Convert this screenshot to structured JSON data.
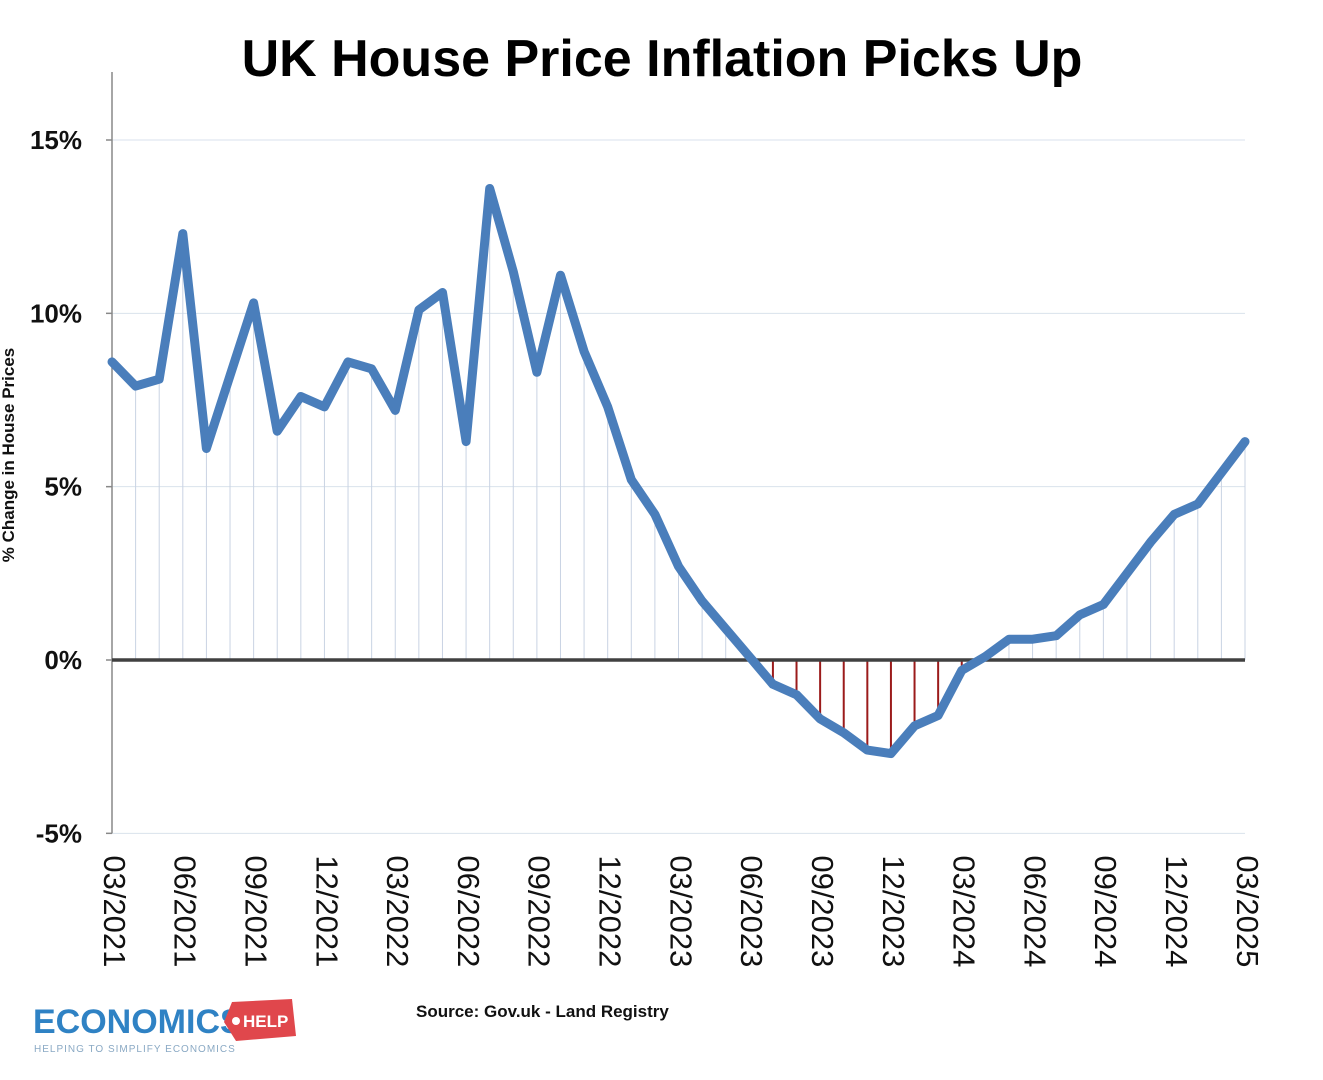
{
  "chart_data": {
    "type": "line",
    "title": "UK House Price Inflation Picks Up",
    "ylabel": "% Change in House Prices",
    "ylim": [
      -5,
      17
    ],
    "yticks": [
      -5,
      0,
      5,
      10,
      15
    ],
    "ytick_labels": [
      "-5%",
      "0%",
      "5%",
      "10%",
      "15%"
    ],
    "x_tick_labels": [
      "03/2021",
      "06/2021",
      "09/2021",
      "12/2021",
      "03/2022",
      "06/2022",
      "09/2022",
      "12/2022",
      "03/2023",
      "06/2023",
      "09/2023",
      "12/2023",
      "03/2024",
      "06/2024",
      "09/2024",
      "12/2024",
      "03/2025"
    ],
    "x": [
      "03/2021",
      "04/2021",
      "05/2021",
      "06/2021",
      "07/2021",
      "08/2021",
      "09/2021",
      "10/2021",
      "11/2021",
      "12/2021",
      "01/2022",
      "02/2022",
      "03/2022",
      "04/2022",
      "05/2022",
      "06/2022",
      "07/2022",
      "08/2022",
      "09/2022",
      "10/2022",
      "11/2022",
      "12/2022",
      "01/2023",
      "02/2023",
      "03/2023",
      "04/2023",
      "05/2023",
      "06/2023",
      "07/2023",
      "08/2023",
      "09/2023",
      "10/2023",
      "11/2023",
      "12/2023",
      "01/2024",
      "02/2024",
      "03/2024",
      "04/2024",
      "05/2024",
      "06/2024",
      "07/2024",
      "08/2024",
      "09/2024",
      "10/2024",
      "11/2024",
      "12/2024",
      "01/2025",
      "02/2025",
      "03/2025"
    ],
    "series": [
      {
        "values": [
          8.6,
          7.9,
          8.1,
          12.3,
          6.1,
          8.2,
          10.3,
          6.6,
          7.6,
          7.3,
          8.6,
          8.4,
          7.2,
          10.1,
          10.6,
          6.3,
          13.6,
          11.2,
          8.3,
          11.1,
          8.9,
          7.3,
          5.2,
          4.2,
          2.7,
          1.7,
          0.9,
          0.1,
          -0.7,
          -1.0,
          -1.7,
          -2.1,
          -2.6,
          -2.7,
          -1.9,
          -1.6,
          -0.3,
          0.1,
          0.6,
          0.6,
          0.7,
          1.3,
          1.6,
          2.5,
          3.4,
          4.2,
          4.5,
          5.4,
          6.3
        ],
        "color": "#4a7ebb"
      }
    ],
    "zero_line_color": "#404040",
    "negative_drop_color": "#9b1b1b",
    "drop_line_color": "#c9d3e3",
    "grid": true
  },
  "source": "Source: Gov.uk - Land Registry",
  "logo": {
    "name": "ECONOMICS",
    "badge": "HELP",
    "tagline": "HELPING TO SIMPLIFY ECONOMICS",
    "color": "#2f82c4",
    "badge_color": "#e0474c"
  }
}
